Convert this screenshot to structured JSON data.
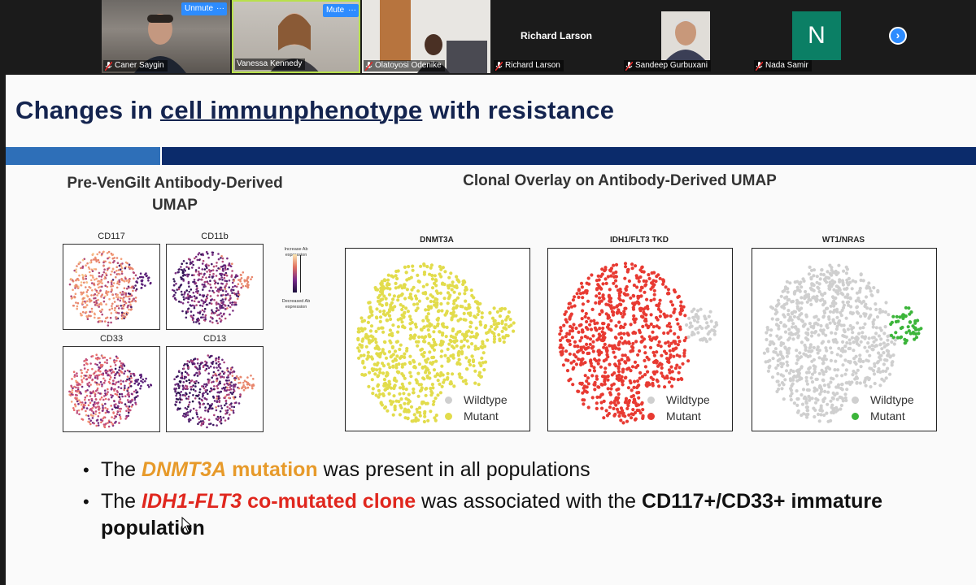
{
  "participants": [
    {
      "name": "Caner Saygin",
      "control": "Unmute",
      "muted": true
    },
    {
      "name": "Vanessa Kennedy",
      "control": "Mute",
      "muted": false
    },
    {
      "name": "Olatoyosi Odenike",
      "muted": true
    },
    {
      "name": "Richard Larson",
      "muted": true,
      "video_off": true
    },
    {
      "name": "Sandeep Gurbuxani",
      "muted": true
    },
    {
      "name": "Nada Samir",
      "muted": true,
      "avatar_letter": "N"
    }
  ],
  "more_menu": "···",
  "slide": {
    "title_pre": "Changes in ",
    "title_underlined": "cell immunphenotype",
    "title_post": " with resistance",
    "left_heading_line1": "Pre-VenGilt Antibody-Derived",
    "left_heading_line2": "UMAP",
    "right_heading": "Clonal Overlay on Antibody-Derived UMAP",
    "markers": [
      "CD117",
      "CD11b",
      "CD33",
      "CD13"
    ],
    "colorbar_top": "Increase Ab expression",
    "colorbar_bottom": "Decreased Ab expression",
    "clones": [
      {
        "label": "DNMT3A",
        "mutant_color": "#e2dc4c",
        "cluster_mutant": true
      },
      {
        "label": "IDH1/FLT3 TKD",
        "mutant_color": "#e83a32",
        "cluster_mutant": false
      },
      {
        "label": "WT1/NRAS",
        "mutant_color": "#3cb53a",
        "cluster_mutant": true
      }
    ],
    "legend_wildtype": "Wildtype",
    "legend_mutant": "Mutant",
    "wildtype_color": "#cfcfcf",
    "bullet1_pre": "The ",
    "bullet1_highlight": "DNMT3A",
    "bullet1_highlight2": " mutation",
    "bullet1_post": " was present in all populations",
    "bullet2_pre": "The ",
    "bullet2_highlight": "IDH1-FLT3",
    "bullet2_highlight2": " co-mutated clone",
    "bullet2_mid": " was associated with the ",
    "bullet2_bold": "CD117+/CD33+ immature population"
  },
  "colors": {
    "title": "#14244f",
    "zoom_blue": "#2d8cff",
    "band_dark": "#0b2b6b",
    "band_light": "#2e6fb8"
  }
}
